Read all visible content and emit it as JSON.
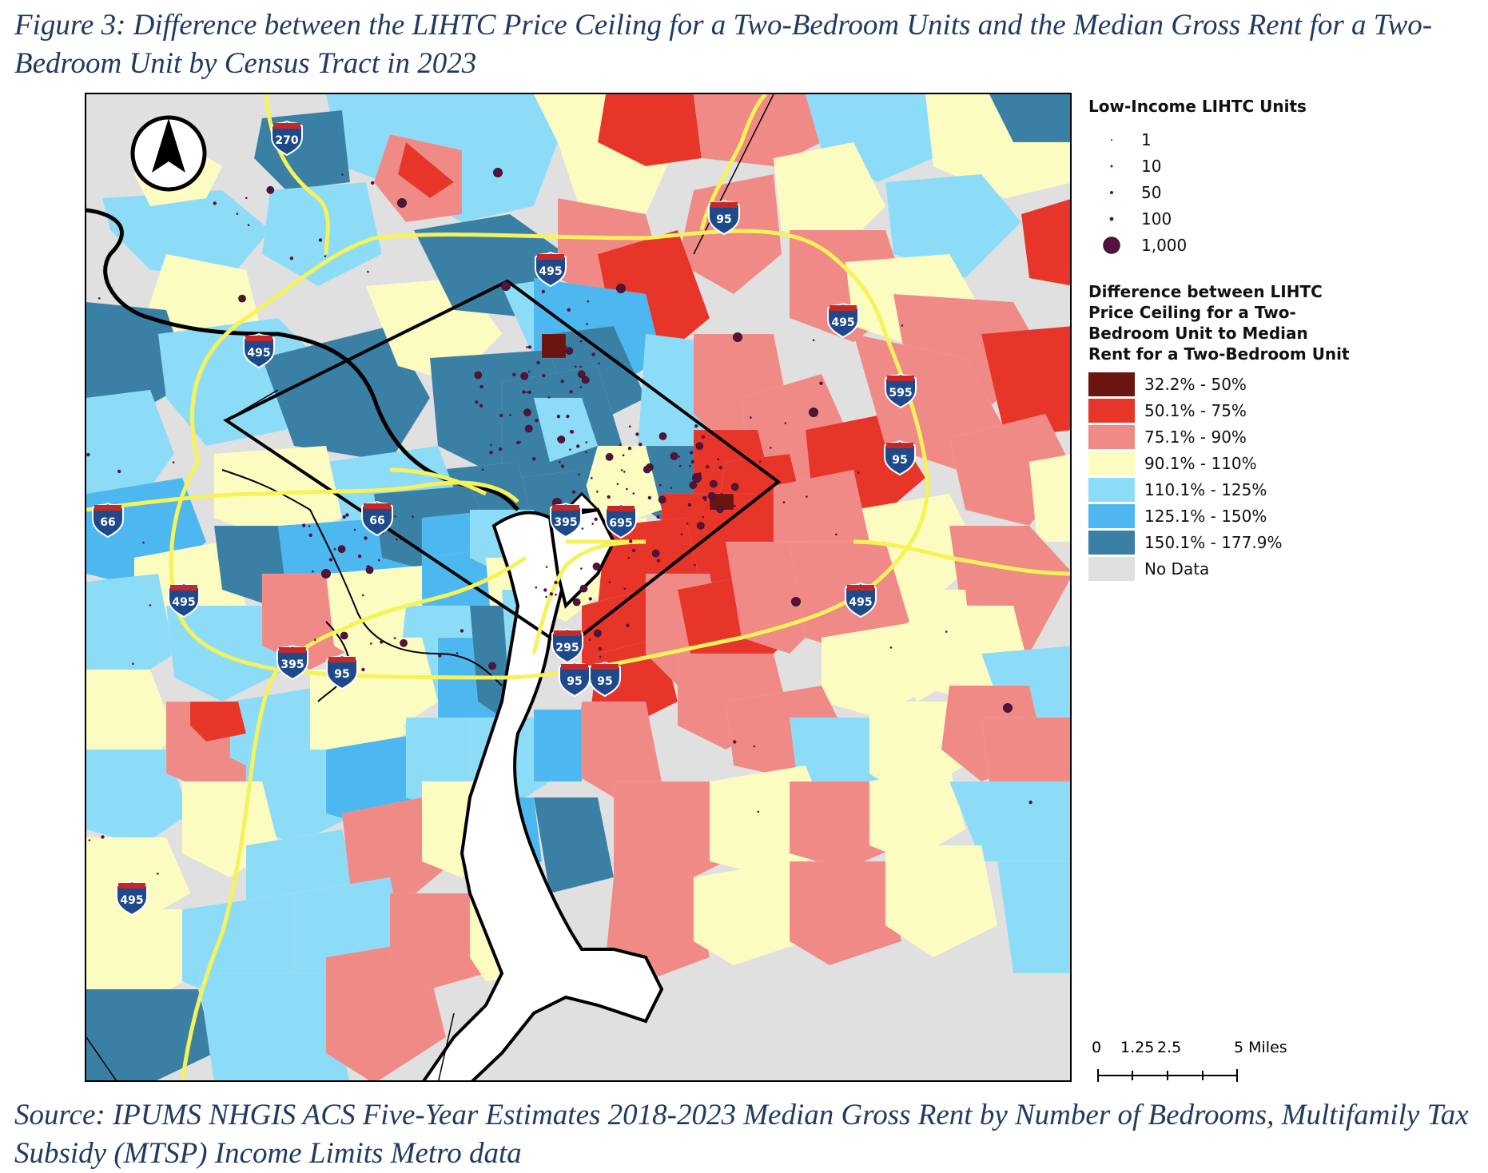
{
  "figure": {
    "title": "Figure 3: Difference between the LIHTC Price Ceiling for a Two-Bedroom Units and the Median Gross Rent for a Two-Bedroom Unit by Census Tract in 2023",
    "source": "Source: IPUMS NHGIS ACS Five-Year Estimates 2018-2023 Median Gross Rent by Number of Bedrooms, Multifamily Tax Subsidy (MTSP) Income Limits Metro data"
  },
  "legend": {
    "units_title": "Low-Income LIHTC Units",
    "unit_sizes": [
      {
        "label": "1",
        "value": 1
      },
      {
        "label": "10",
        "value": 10
      },
      {
        "label": "50",
        "value": 50
      },
      {
        "label": "100",
        "value": 100
      },
      {
        "label": "1,000",
        "value": 1000
      }
    ],
    "diff_title_lines": [
      "Difference between LIHTC",
      "Price Ceiling for a Two-",
      "Bedroom Unit to Median",
      "Rent for a Two-Bedroom Unit"
    ],
    "classes": [
      {
        "label": "32.2% - 50%",
        "color": "#6b1410"
      },
      {
        "label": "50.1% - 75%",
        "color": "#e8352a"
      },
      {
        "label": "75.1% - 90%",
        "color": "#ef8a87"
      },
      {
        "label": "90.1% - 110%",
        "color": "#fdfcc0"
      },
      {
        "label": "110.1% - 125%",
        "color": "#8ddcf7"
      },
      {
        "label": "125.1% - 150%",
        "color": "#4cb8ef"
      },
      {
        "label": "150.1% - 177.9%",
        "color": "#3a7fa4"
      },
      {
        "label": "No Data",
        "color": "#e0e0e0"
      }
    ],
    "dot_color": "#5b0f3f"
  },
  "scale": {
    "labels": [
      {
        "text": "0",
        "miles": 0
      },
      {
        "text": "1.25",
        "miles": 1.25
      },
      {
        "text": "2.5",
        "miles": 2.5
      },
      {
        "text": "5 Miles",
        "miles": 5
      }
    ]
  },
  "map": {
    "north_arrow": "north-arrow-icon",
    "highway_shields": [
      "270",
      "95",
      "495",
      "495",
      "495",
      "595",
      "95",
      "66",
      "66",
      "395",
      "695",
      "495",
      "495",
      "295",
      "395",
      "95",
      "95",
      "495",
      "95"
    ]
  }
}
